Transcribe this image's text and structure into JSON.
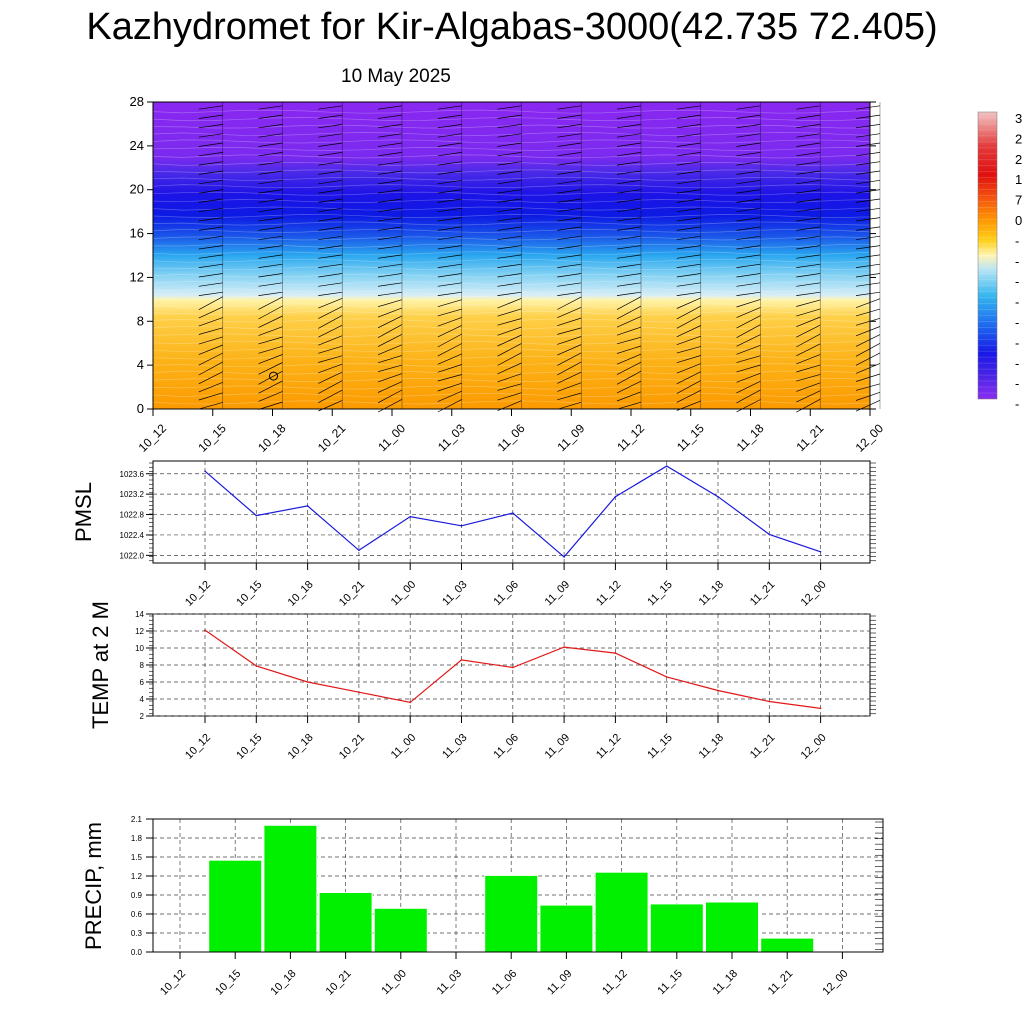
{
  "header": {
    "title": "Kazhydromet for Kir-Algabas-3000(42.735 72.405)",
    "subtitle": "10 May 2025"
  },
  "colorbar": {
    "labels": [
      "3",
      "2",
      "2",
      "1",
      "7",
      "0",
      "-",
      "-",
      "-",
      "-",
      "-",
      "-",
      "-",
      "-",
      "-"
    ],
    "colors": [
      "#f0b8b8",
      "#e02020",
      "#f04a10",
      "#ff8a00",
      "#ffd21e",
      "#fff6b0",
      "#b3e3f5",
      "#35b7ee",
      "#1e6cf0",
      "#2d36ea",
      "#1818e6",
      "#6a1fe8",
      "#8a2df0"
    ]
  },
  "chart_data": [
    {
      "type": "heatmap",
      "title": "Kazhydromet for Kir-Algabas-3000(42.735 72.405)",
      "subtitle": "10 May 2025",
      "x": [
        "10_12",
        "10_15",
        "10_18",
        "10_21",
        "11_00",
        "11_03",
        "11_06",
        "11_09",
        "11_12",
        "11_15",
        "11_18",
        "11_21",
        "12_00"
      ],
      "yticks": [
        0,
        4,
        8,
        12,
        16,
        20,
        24,
        28
      ],
      "ylim": [
        0,
        28
      ],
      "overlay": "wind barbs",
      "colors": {
        "bottom": "#fb9a00",
        "mid_low": "#ffd83a",
        "transition": "#bfe6f5",
        "mid_high": "#0f2de8",
        "top": "#8a28f0"
      }
    },
    {
      "type": "line",
      "ylabel": "PMSL",
      "x": [
        "10_12",
        "10_15",
        "10_18",
        "10_21",
        "11_00",
        "11_03",
        "11_06",
        "11_09",
        "11_12",
        "11_15",
        "11_18",
        "11_21",
        "12_00"
      ],
      "values": [
        1023.65,
        1022.78,
        1022.97,
        1022.1,
        1022.76,
        1022.58,
        1022.83,
        1021.97,
        1023.15,
        1023.75,
        1023.15,
        1022.41,
        1022.07
      ],
      "yticks": [
        1022.0,
        1022.4,
        1022.8,
        1023.2,
        1023.6
      ],
      "ytick_labels": [
        "1022.0",
        "1022.4",
        "1022.8",
        "1023.2",
        "1023.6"
      ],
      "ylim": [
        1021.85,
        1023.85
      ],
      "color": "#1a1adb",
      "grid": true
    },
    {
      "type": "line",
      "ylabel": "TEMP at 2 M",
      "x": [
        "10_12",
        "10_15",
        "10_18",
        "10_21",
        "11_00",
        "11_03",
        "11_06",
        "11_09",
        "11_12",
        "11_15",
        "11_18",
        "11_21",
        "12_00"
      ],
      "values": [
        12.1,
        7.9,
        6.0,
        4.8,
        3.6,
        8.6,
        7.7,
        10.1,
        9.4,
        6.6,
        5.0,
        3.7,
        2.9
      ],
      "yticks": [
        2,
        4,
        6,
        8,
        10,
        12,
        14
      ],
      "ytick_labels": [
        "2",
        "4",
        "6",
        "8",
        "10",
        "12",
        "14"
      ],
      "ylim": [
        2,
        14
      ],
      "color": "#e01818",
      "grid": true
    },
    {
      "type": "bar",
      "ylabel": "PRECIP, mm",
      "categories": [
        "10_12",
        "10_15",
        "10_18",
        "10_21",
        "11_00",
        "11_03",
        "11_06",
        "11_09",
        "11_12",
        "11_15",
        "11_18",
        "11_21",
        "12_00"
      ],
      "values": [
        0,
        1.45,
        2.0,
        0.94,
        0.69,
        0,
        1.21,
        0.74,
        1.26,
        0.76,
        0.79,
        0.22,
        0
      ],
      "yticks": [
        0,
        0.3,
        0.6,
        0.9,
        1.2,
        1.5,
        1.8,
        2.1
      ],
      "ytick_labels": [
        "0.0",
        "0.3",
        "0.6",
        "0.9",
        "1.2",
        "1.5",
        "1.8",
        "2.1"
      ],
      "ylim": [
        0,
        2.1
      ],
      "color": "#00f000",
      "grid": true
    }
  ]
}
